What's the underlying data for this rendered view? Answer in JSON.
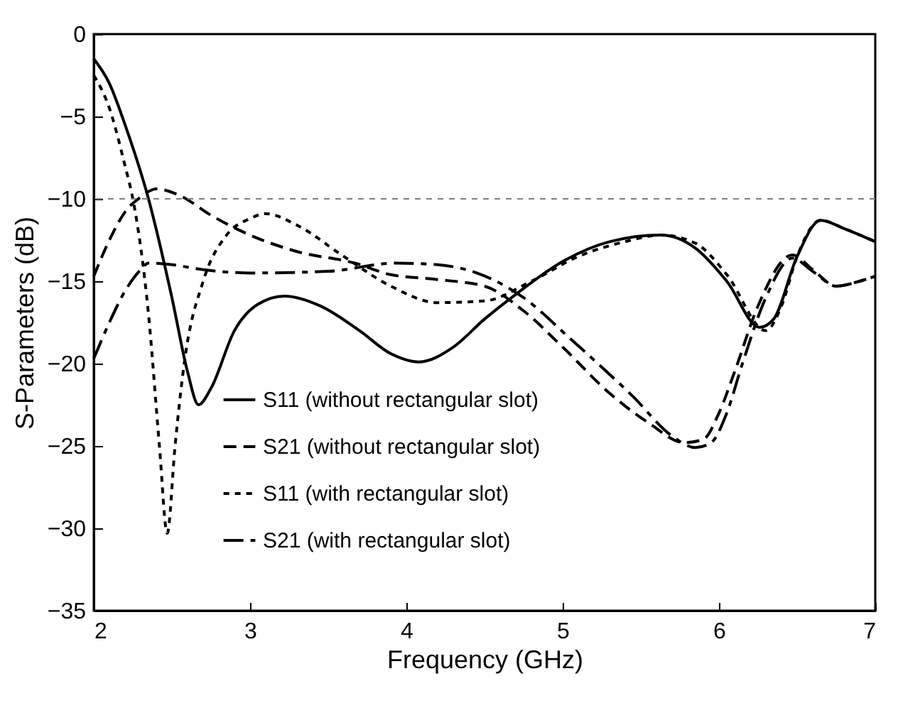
{
  "chart_data": {
    "type": "line",
    "xlabel": "Frequency (GHz)",
    "ylabel": "S-Parameters (dB)",
    "xlim": [
      2,
      7
    ],
    "xticks": [
      2,
      3,
      4,
      5,
      6,
      7
    ],
    "ylim": [
      -35,
      0
    ],
    "yticks": [
      -35,
      -30,
      -25,
      -20,
      -15,
      -10,
      -5,
      0
    ],
    "grid": false,
    "legend": "bottom left",
    "ref_lines": [
      {
        "axis": "y",
        "value": -10,
        "color": "#808080",
        "line_style": "dotted"
      }
    ],
    "series": [
      {
        "name": "S11 (without rectangular slot)",
        "color": "#000000",
        "line_style": "solid",
        "x": [
          2,
          2.1,
          2.2,
          2.35,
          2.5,
          2.6,
          2.67,
          2.75,
          2.9,
          3.05,
          3.22,
          3.45,
          3.7,
          3.9,
          4.08,
          4.3,
          4.5,
          4.7,
          5.0,
          5.3,
          5.63,
          5.85,
          6.05,
          6.26,
          6.35,
          6.5,
          6.65,
          6.8,
          7
        ],
        "values": [
          -1.5,
          -3,
          -5.5,
          -10,
          -16,
          -20.5,
          -22.5,
          -21.5,
          -18,
          -16.4,
          -15.9,
          -16.5,
          -18,
          -19.4,
          -19.9,
          -19,
          -17.3,
          -15.8,
          -13.8,
          -12.6,
          -12.2,
          -13,
          -15,
          -17.8,
          -17.3,
          -13.5,
          -11.3,
          -11.8,
          -12.6
        ]
      },
      {
        "name": "S21 (without rectangular slot)",
        "color": "#000000",
        "line_style": "dashed",
        "x": [
          2,
          2.1,
          2.2,
          2.3,
          2.4,
          2.55,
          2.75,
          3.0,
          3.3,
          3.67,
          3.9,
          4.2,
          4.5,
          4.75,
          5.0,
          5.3,
          5.55,
          5.78,
          5.9,
          6.0,
          6.1,
          6.25,
          6.47,
          6.6,
          6.75,
          6.9,
          7
        ],
        "values": [
          -14.7,
          -12.5,
          -10.8,
          -9.9,
          -9.4,
          -9.8,
          -11,
          -12.2,
          -13.2,
          -13.9,
          -14.6,
          -14.9,
          -15.3,
          -16.8,
          -19,
          -21.8,
          -23.6,
          -24.8,
          -24.6,
          -23,
          -20.5,
          -16.5,
          -13.4,
          -14.3,
          -15.3,
          -15,
          -14.7
        ]
      },
      {
        "name": "S11 (with rectangular slot)",
        "color": "#000000",
        "line_style": "dotted",
        "x": [
          2,
          2.1,
          2.2,
          2.25,
          2.35,
          2.42,
          2.47,
          2.52,
          2.58,
          2.7,
          2.85,
          3.0,
          3.1,
          3.3,
          3.6,
          3.9,
          4.2,
          4.5,
          4.8,
          5.1,
          5.4,
          5.63,
          5.85,
          6.05,
          6.3,
          6.4,
          6.5,
          6.65,
          6.8,
          7
        ],
        "values": [
          -2.5,
          -4.5,
          -8,
          -10,
          -17,
          -25,
          -30.3,
          -25,
          -19.9,
          -15,
          -12.2,
          -11.2,
          -10.9,
          -11.6,
          -13.5,
          -15.3,
          -16.3,
          -16.2,
          -15,
          -13.5,
          -12.6,
          -12.2,
          -12.7,
          -14.6,
          -18,
          -16.5,
          -13.5,
          -11.3,
          -11.8,
          -12.6
        ]
      },
      {
        "name": "S21 (with rectangular slot)",
        "color": "#000000",
        "line_style": "dashdot",
        "x": [
          2,
          2.1,
          2.2,
          2.3,
          2.35,
          2.5,
          2.7,
          3.0,
          3.5,
          3.93,
          4.2,
          4.45,
          4.75,
          5.05,
          5.45,
          5.7,
          5.85,
          5.95,
          6.05,
          6.15,
          6.3,
          6.47,
          6.6,
          6.75,
          6.9,
          7
        ],
        "values": [
          -19.7,
          -17.5,
          -15.6,
          -14.3,
          -13.9,
          -14,
          -14.3,
          -14.5,
          -14.4,
          -13.9,
          -14,
          -14.5,
          -16,
          -18.5,
          -22,
          -24.4,
          -25.1,
          -24.8,
          -23,
          -20,
          -16,
          -13.6,
          -14.4,
          -15.3,
          -15,
          -14.7
        ]
      }
    ]
  }
}
